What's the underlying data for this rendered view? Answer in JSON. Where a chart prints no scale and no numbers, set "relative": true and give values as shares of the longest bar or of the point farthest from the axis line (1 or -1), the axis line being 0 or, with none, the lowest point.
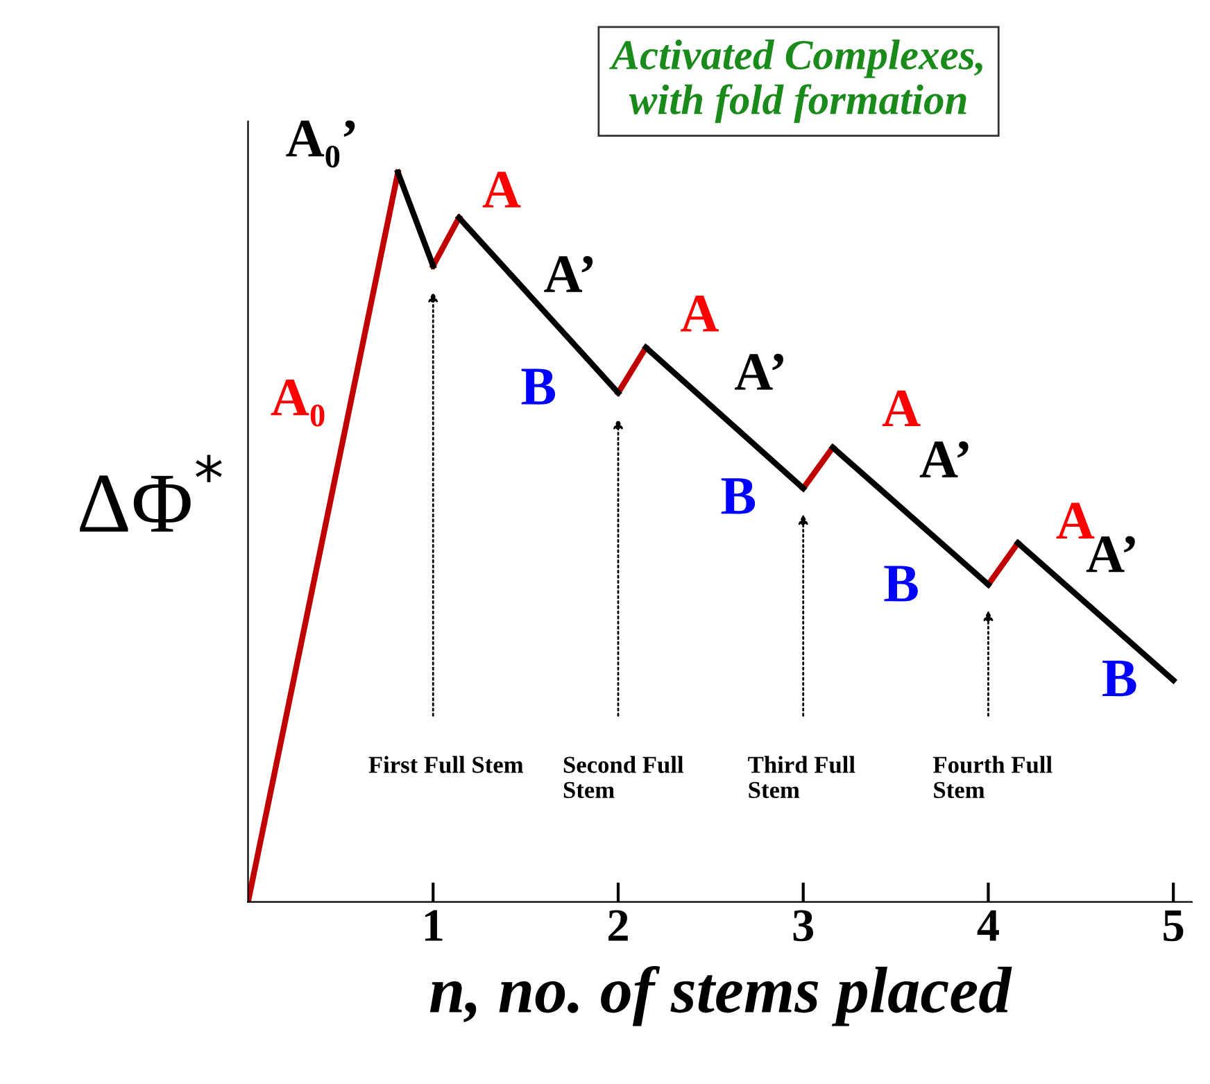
{
  "chart_data": {
    "type": "line",
    "relative": true,
    "xlabel": "n, no. of stems placed",
    "ylabel": "ΔΦ$^{*}$",
    "xlim": [
      0,
      5.1
    ],
    "xticks": [
      1,
      2,
      3,
      4,
      5
    ],
    "tick_labels": "x",
    "grid": false,
    "legend": false,
    "marker": "none",
    "line_style": "solid",
    "series": [
      {
        "color": "#c00000",
        "x": [
          0,
          0.81,
          0.9,
          1,
          1.14,
          1.5,
          2,
          2.15,
          2.5,
          3,
          3.16,
          3.5,
          4,
          4.16
        ],
        "values": [
          0,
          1.0,
          null,
          0.872,
          0.938,
          null,
          0.698,
          0.76,
          null,
          0.567,
          0.623,
          null,
          0.435,
          0.492
        ]
      },
      {
        "color": "#000000",
        "x": [
          0.81,
          1,
          1.05,
          1.14,
          2,
          2.05,
          2.15,
          3,
          3.05,
          3.16,
          4,
          4.05,
          4.16,
          5
        ],
        "values": [
          1.0,
          0.872,
          null,
          0.938,
          0.698,
          null,
          0.76,
          0.567,
          null,
          0.623,
          0.435,
          null,
          0.492,
          0.304
        ]
      }
    ],
    "annotations": [
      "Activated Complexes,\nwith fold formation",
      "First Full Stem",
      "Second Full\nStem",
      "Third Full\nStem",
      "Fourth Full\nStem",
      "A₀",
      "A₀’",
      "A",
      "A’",
      "B",
      "A",
      "A’",
      "B",
      "A",
      "A’",
      "B",
      "A",
      "A’",
      "B"
    ]
  }
}
